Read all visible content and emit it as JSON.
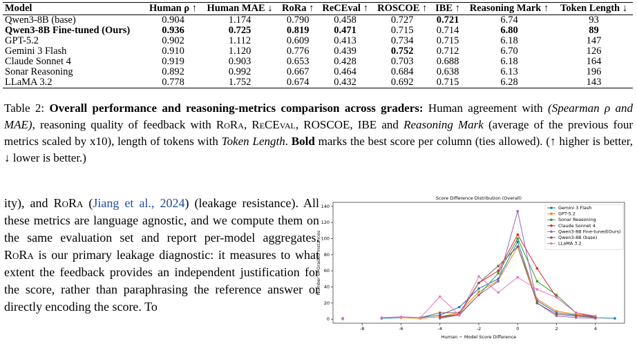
{
  "table": {
    "header": [
      "Model",
      "Human ρ ↑",
      "Human MAE ↓",
      "RoRa ↑",
      "ReCEval ↑",
      "ROSCOE ↑",
      "IBE ↑",
      "Reasoning Mark ↑",
      "Token Length ↓"
    ],
    "rows": [
      {
        "cells": [
          "Qwen3-8B (base)",
          "0.904",
          "1.174",
          "0.790",
          "0.458",
          "0.727",
          "0.721",
          "6.74",
          "93"
        ],
        "bold": [
          6
        ]
      },
      {
        "cells": [
          "Qwen3-8B Fine-tuned (Ours)",
          "0.936",
          "0.725",
          "0.819",
          "0.471",
          "0.715",
          "0.714",
          "6.80",
          "89"
        ],
        "bold": [
          0,
          1,
          2,
          3,
          4,
          7,
          8
        ]
      },
      {
        "cells": [
          "GPT-5.2",
          "0.902",
          "1.112",
          "0.609",
          "0.413",
          "0.734",
          "0.715",
          "6.18",
          "147"
        ],
        "bold": []
      },
      {
        "cells": [
          "Gemini 3 Flash",
          "0.910",
          "1.120",
          "0.776",
          "0.439",
          "0.752",
          "0.712",
          "6.70",
          "126"
        ],
        "bold": [
          5
        ]
      },
      {
        "cells": [
          "Claude Sonnet 4",
          "0.919",
          "0.903",
          "0.653",
          "0.428",
          "0.703",
          "0.688",
          "6.18",
          "164"
        ],
        "bold": []
      },
      {
        "cells": [
          "Sonar Reasoning",
          "0.892",
          "0.992",
          "0.667",
          "0.464",
          "0.684",
          "0.638",
          "6.13",
          "196"
        ],
        "bold": []
      },
      {
        "cells": [
          "LLaMA 3.2",
          "0.778",
          "1.752",
          "0.674",
          "0.432",
          "0.692",
          "0.715",
          "6.28",
          "143"
        ],
        "bold": []
      }
    ]
  },
  "caption": [
    {
      "text": "Table 2: "
    },
    {
      "text": "Overall performance and reasoning-metrics comparison across graders:",
      "style": "bold"
    },
    {
      "text": " Human agreement with "
    },
    {
      "text": "(Spearman ρ and MAE)",
      "style": "italic"
    },
    {
      "text": ", reasoning quality of feedback with "
    },
    {
      "text": "RoRa",
      "style": "smallcaps"
    },
    {
      "text": ", "
    },
    {
      "text": "ReCEval",
      "style": "smallcaps"
    },
    {
      "text": ", ROSCOE, IBE and "
    },
    {
      "text": "Reasoning Mark",
      "style": "italic"
    },
    {
      "text": " (average of the previous four metrics scaled by x10), length of tokens with "
    },
    {
      "text": "Token Length",
      "style": "italic"
    },
    {
      "text": ". "
    },
    {
      "text": "Bold",
      "style": "bold"
    },
    {
      "text": " marks the best score per column (ties allowed). (↑ higher is better, ↓ lower is better.)"
    }
  ],
  "body": [
    {
      "text": "ity), and "
    },
    {
      "text": "RoRa",
      "style": "smallcaps"
    },
    {
      "text": " ("
    },
    {
      "text": "Jiang et al., 2024",
      "style": "link"
    },
    {
      "text": ") (leakage resistance). All these metrics are language agnostic, and we compute them on the same evaluation set and report per-model aggregates. "
    },
    {
      "text": "RoRa",
      "style": "smallcaps"
    },
    {
      "text": " is our primary leakage diagnostic: it measures to what extent the feedback provides an independent justification for the score, rather than paraphrasing the reference answer or directly encoding the score. To"
    }
  ],
  "chart_data": {
    "type": "line",
    "title": "Score Difference Distribution (Overall)",
    "x_label": "Human − Model Score Difference",
    "y_label": "Number of Graded Instances",
    "x": [
      -9,
      -8,
      -7,
      -6,
      -5,
      -4,
      -3,
      -2,
      -1,
      0,
      1,
      2,
      3,
      4,
      5
    ],
    "xlim": [
      -9.5,
      5.5
    ],
    "xticks": [
      -8,
      -6,
      -4,
      -2,
      0,
      2,
      4
    ],
    "ylim": [
      -5,
      145
    ],
    "yticks": [
      0,
      20,
      40,
      60,
      80,
      100,
      120,
      140
    ],
    "legend": "upper-right",
    "series": [
      {
        "name": "Gemini 3 Flash",
        "color": "#1f77b4",
        "values": [
          1,
          null,
          1,
          2,
          2,
          5,
          15,
          38,
          50,
          96,
          23,
          8,
          5,
          2,
          1
        ]
      },
      {
        "name": "GPT-5.2",
        "color": "#ff7f0e",
        "values": [
          null,
          null,
          null,
          2,
          1,
          3,
          8,
          34,
          48,
          90,
          25,
          10,
          6,
          3,
          null
        ]
      },
      {
        "name": "Sonar Reasoning",
        "color": "#2ca02c",
        "values": [
          null,
          null,
          null,
          null,
          null,
          2,
          6,
          30,
          57,
          100,
          47,
          30,
          8,
          3,
          null
        ]
      },
      {
        "name": "Claude Sonnet 4",
        "color": "#d62728",
        "values": [
          null,
          null,
          null,
          null,
          null,
          3,
          6,
          45,
          60,
          105,
          63,
          27,
          8,
          2,
          null
        ]
      },
      {
        "name": "Qwen3-8B Fine-tuned(Ours)",
        "color": "#9467bd",
        "values": [
          null,
          null,
          null,
          null,
          null,
          1,
          5,
          30,
          47,
          134,
          20,
          4,
          2,
          1,
          null
        ]
      },
      {
        "name": "Qwen3-8B (base)",
        "color": "#8c564b",
        "values": [
          null,
          null,
          null,
          null,
          2,
          8,
          8,
          45,
          66,
          90,
          20,
          6,
          4,
          2,
          null
        ]
      },
      {
        "name": "LLaMA 3.2",
        "color": "#e377c2",
        "values": [
          0,
          null,
          2,
          3,
          2,
          28,
          5,
          53,
          33,
          52,
          37,
          27,
          8,
          4,
          null
        ]
      }
    ]
  }
}
